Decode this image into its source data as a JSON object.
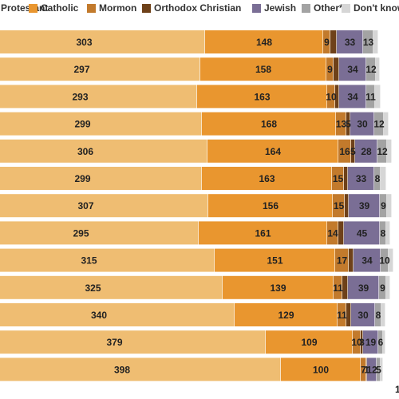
{
  "chart_data": {
    "type": "bar",
    "orientation": "horizontal",
    "stacked": true,
    "title": "",
    "xlabel": "",
    "ylabel": "",
    "legend_position": "top",
    "series": [
      {
        "name": "Protestant",
        "color": "#efbd72",
        "values": [
          303,
          297,
          293,
          299,
          306,
          299,
          307,
          295,
          315,
          325,
          340,
          379,
          398
        ]
      },
      {
        "name": "Catholic",
        "color": "#e9962f",
        "values": [
          148,
          158,
          163,
          168,
          164,
          163,
          156,
          161,
          151,
          139,
          129,
          109,
          100
        ]
      },
      {
        "name": "Mormon",
        "color": "#c27a2c",
        "values": [
          9,
          9,
          10,
          13,
          16,
          15,
          15,
          14,
          17,
          11,
          11,
          10,
          7
        ]
      },
      {
        "name": "Orthodox Christian",
        "color": "#6e4119",
        "values": [
          8,
          7,
          5,
          5,
          5,
          5,
          5,
          7,
          6,
          7,
          6,
          3,
          1
        ]
      },
      {
        "name": "Jewish",
        "color": "#7a6e95",
        "values": [
          33,
          34,
          34,
          30,
          28,
          33,
          39,
          45,
          34,
          39,
          30,
          19,
          12
        ]
      },
      {
        "name": "Other*",
        "color": "#a3a3a3",
        "values": [
          13,
          12,
          11,
          12,
          12,
          8,
          9,
          8,
          10,
          9,
          8,
          6,
          5
        ]
      },
      {
        "name": "Don't know",
        "color": "#d6d6d6",
        "values": [
          6,
          5,
          7,
          6,
          6,
          7,
          6,
          5,
          6,
          5,
          5,
          3,
          3
        ]
      }
    ],
    "rows": 13,
    "xlim": [
      0,
      535
    ],
    "visible_x_tick": "1",
    "label_visibility": [
      [
        true,
        true,
        true,
        true,
        true,
        true,
        true,
        true,
        true,
        true,
        true,
        true,
        true
      ],
      [
        true,
        true,
        true,
        true,
        true,
        true,
        true,
        true,
        true,
        true,
        true,
        true,
        true
      ],
      [
        true,
        true,
        true,
        true,
        true,
        true,
        true,
        true,
        true,
        true,
        true,
        true,
        true
      ],
      [
        false,
        false,
        false,
        true,
        true,
        false,
        false,
        false,
        false,
        false,
        false,
        true,
        true
      ],
      [
        true,
        true,
        true,
        true,
        true,
        true,
        true,
        true,
        true,
        true,
        true,
        true,
        true
      ],
      [
        true,
        true,
        true,
        true,
        true,
        true,
        true,
        true,
        true,
        true,
        true,
        true,
        true
      ],
      [
        false,
        false,
        false,
        false,
        false,
        false,
        false,
        false,
        false,
        false,
        false,
        false,
        false
      ]
    ]
  }
}
